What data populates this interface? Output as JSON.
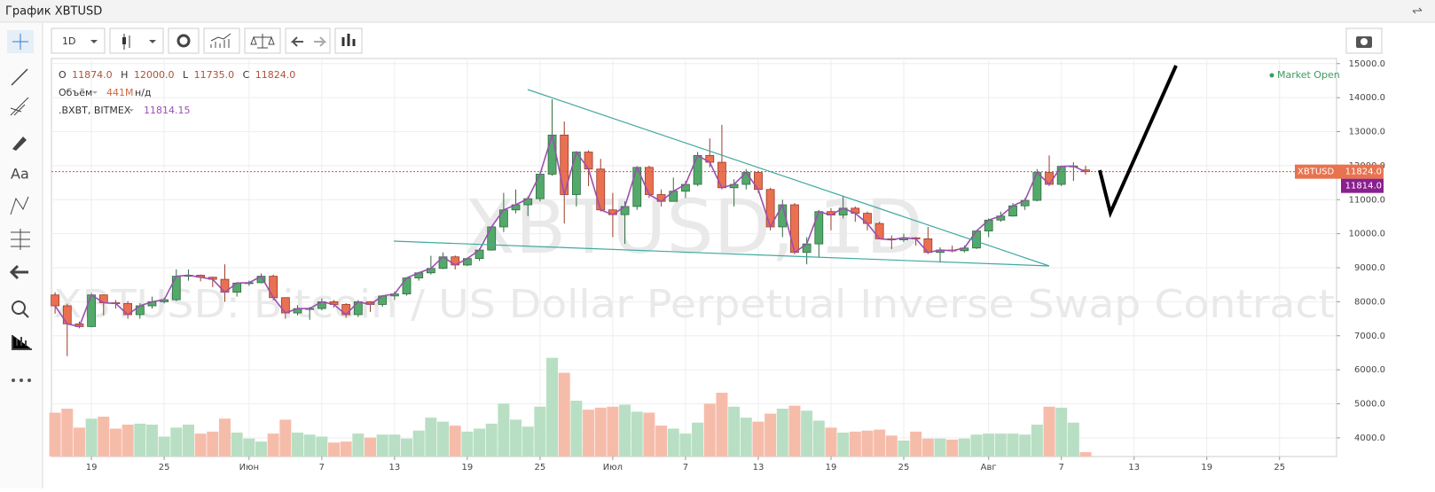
{
  "window_title": "График XBTUSD",
  "toolbar": {
    "interval": "1D",
    "text_tool": "Aa"
  },
  "chart_data": {
    "type": "candlestick",
    "header_labels": [
      "O",
      "H",
      "L",
      "C"
    ],
    "header_values": [
      "11874.0",
      "12000.0",
      "11735.0",
      "11824.0"
    ],
    "volume_name": "Объём",
    "volume_value": "441M",
    "volume_extra": "н/д",
    "index_name": ".BXBT, BITMEX",
    "index_value": "11814.15",
    "watermark": "XBTUSD, 1D",
    "watermark_subtitle": "XBTUSD: Bitcoin / US Dollar Perpetual Inverse Swap Contract",
    "market_status": "Market Open",
    "symbol_tag": "XBTUSD",
    "last_price": {
      "value": 11824,
      "label": "11824.0"
    },
    "index_price": {
      "value": 11814,
      "label": "11814.0"
    },
    "up_color": "#53a96a",
    "down_color": "#ea7052",
    "grid": true,
    "xlim": [
      -0.3,
      105.7
    ],
    "ylim": [
      3450,
      15150
    ],
    "xticks": [
      {
        "value": 3,
        "label": "19"
      },
      {
        "value": 9,
        "label": "25"
      },
      {
        "value": 16,
        "label": "Июн"
      },
      {
        "value": 22,
        "label": "7"
      },
      {
        "value": 28,
        "label": "13"
      },
      {
        "value": 34,
        "label": "19"
      },
      {
        "value": 40,
        "label": "25"
      },
      {
        "value": 46,
        "label": "Июл"
      },
      {
        "value": 52,
        "label": "7"
      },
      {
        "value": 58,
        "label": "13"
      },
      {
        "value": 64,
        "label": "19"
      },
      {
        "value": 70,
        "label": "25"
      },
      {
        "value": 77,
        "label": "Авг"
      },
      {
        "value": 83,
        "label": "7"
      },
      {
        "value": 89,
        "label": "13"
      },
      {
        "value": 95,
        "label": "19"
      },
      {
        "value": 101,
        "label": "25"
      }
    ],
    "yticks": [
      {
        "value": 15000,
        "label": "15000.0"
      },
      {
        "value": 14000,
        "label": "14000.0"
      },
      {
        "value": 13000,
        "label": "13000.0"
      },
      {
        "value": 12000,
        "label": "12000.0"
      },
      {
        "value": 11000,
        "label": "11000.0"
      },
      {
        "value": 10000,
        "label": "10000.0"
      },
      {
        "value": 9000,
        "label": "9000.0"
      },
      {
        "value": 8000,
        "label": "8000.0"
      },
      {
        "value": 7000,
        "label": "7000.0"
      },
      {
        "value": 6000,
        "label": "6000.0"
      },
      {
        "value": 5000,
        "label": "5000.0"
      },
      {
        "value": 4000,
        "label": "4000.0"
      }
    ],
    "x": [
      0,
      1,
      2,
      3,
      4,
      5,
      6,
      7,
      8,
      9,
      10,
      11,
      12,
      13,
      14,
      15,
      16,
      17,
      18,
      19,
      20,
      21,
      22,
      23,
      24,
      25,
      26,
      27,
      28,
      29,
      30,
      31,
      32,
      33,
      34,
      35,
      36,
      37,
      38,
      39,
      40,
      41,
      42,
      43,
      44,
      45,
      46,
      47,
      48,
      49,
      50,
      51,
      52,
      53,
      54,
      55,
      56,
      57,
      58,
      59,
      60,
      61,
      62,
      63,
      64,
      65,
      66,
      67,
      68,
      69,
      70,
      71,
      72,
      73,
      74,
      75,
      76,
      77,
      78,
      79,
      80,
      81,
      82,
      83,
      84,
      85
    ],
    "open": [
      8200,
      7880,
      7350,
      7270,
      8200,
      7970,
      7950,
      7620,
      7880,
      8000,
      8060,
      8750,
      8780,
      8720,
      8660,
      8280,
      8550,
      8560,
      8750,
      8120,
      7670,
      7800,
      7800,
      8000,
      7920,
      7620,
      8000,
      7920,
      8170,
      8230,
      8700,
      8850,
      8980,
      9320,
      9080,
      9270,
      9520,
      10200,
      10700,
      10850,
      11030,
      11750,
      12900,
      11150,
      12400,
      11900,
      10700,
      10560,
      10800,
      11950,
      11150,
      10950,
      11250,
      11450,
      12300,
      12100,
      11350,
      11450,
      11800,
      11300,
      10200,
      10850,
      9450,
      9700,
      10650,
      10550,
      10750,
      10600,
      10300,
      9850,
      9820,
      9880,
      9850,
      9450,
      9520,
      9500,
      9580,
      10080,
      10400,
      10520,
      10820,
      10980,
      11800,
      11450,
      11980,
      11874
    ],
    "high": [
      8280,
      7940,
      7420,
      8260,
      8210,
      8050,
      8020,
      7960,
      8150,
      8120,
      8950,
      8950,
      8800,
      8740,
      9100,
      8580,
      8620,
      8830,
      8800,
      8130,
      7900,
      7850,
      8100,
      8050,
      7960,
      8050,
      8020,
      8200,
      8300,
      8720,
      8880,
      9350,
      9450,
      9360,
      9300,
      9570,
      10200,
      11200,
      11300,
      11100,
      11800,
      13950,
      13300,
      12400,
      12450,
      12200,
      11200,
      10950,
      11950,
      12000,
      11300,
      11650,
      11550,
      12400,
      12800,
      13200,
      11600,
      11900,
      11850,
      11350,
      11000,
      10900,
      9900,
      10700,
      10750,
      11100,
      10800,
      10650,
      10350,
      9950,
      10000,
      9900,
      10200,
      9600,
      9650,
      9650,
      10100,
      10450,
      10650,
      10900,
      11050,
      11900,
      12300,
      12000,
      12100,
      12000
    ],
    "low": [
      7650,
      6400,
      7220,
      7250,
      7600,
      7800,
      7500,
      7500,
      7800,
      7950,
      8020,
      8620,
      8600,
      8430,
      8000,
      8150,
      8470,
      8540,
      8050,
      7500,
      7600,
      7470,
      7750,
      7830,
      7530,
      7550,
      7700,
      7850,
      8050,
      8180,
      8620,
      8800,
      8960,
      8950,
      9050,
      9200,
      9500,
      10050,
      10600,
      10520,
      10950,
      11700,
      10300,
      10800,
      11400,
      10650,
      9900,
      9700,
      10700,
      11050,
      10800,
      10950,
      11050,
      11400,
      11950,
      11300,
      10800,
      11300,
      11200,
      10100,
      9900,
      9400,
      9100,
      9300,
      10100,
      10450,
      10350,
      10100,
      9850,
      9550,
      9750,
      9650,
      9400,
      9150,
      9450,
      9450,
      9550,
      9900,
      10350,
      10500,
      10700,
      10950,
      11400,
      11400,
      11550,
      11735
    ],
    "close": [
      7880,
      7350,
      7270,
      8200,
      7970,
      7950,
      7620,
      7880,
      8000,
      8060,
      8750,
      8780,
      8720,
      8660,
      8280,
      8550,
      8560,
      8750,
      8120,
      7670,
      7800,
      7800,
      8000,
      7920,
      7620,
      8000,
      7920,
      8170,
      8230,
      8700,
      8850,
      8980,
      9320,
      9080,
      9270,
      9520,
      10200,
      10700,
      10850,
      11030,
      11750,
      12900,
      11150,
      12400,
      11900,
      10700,
      10560,
      10800,
      11950,
      11150,
      10950,
      11250,
      11450,
      12300,
      12100,
      11350,
      11450,
      11800,
      11300,
      10200,
      10850,
      9450,
      9700,
      10650,
      10550,
      10750,
      10600,
      10300,
      9850,
      9820,
      9880,
      9850,
      9450,
      9520,
      9500,
      9580,
      10080,
      10400,
      10520,
      10820,
      10980,
      11800,
      11450,
      11980,
      11990,
      11824
    ],
    "index_series": {
      "color": "#9c4fb0",
      "values": [
        7880,
        7350,
        7270,
        8200,
        7970,
        7950,
        7620,
        7880,
        8000,
        8060,
        8750,
        8780,
        8720,
        8660,
        8280,
        8550,
        8560,
        8750,
        8120,
        7670,
        7800,
        7800,
        8000,
        7920,
        7620,
        8000,
        7920,
        8170,
        8230,
        8700,
        8850,
        8980,
        9320,
        9080,
        9270,
        9520,
        10200,
        10700,
        10850,
        11030,
        11750,
        12900,
        11150,
        12400,
        11900,
        10700,
        10560,
        10800,
        11950,
        11150,
        10950,
        11250,
        11450,
        12300,
        12100,
        11350,
        11450,
        11800,
        11300,
        10200,
        10850,
        9450,
        9700,
        10650,
        10550,
        10750,
        10600,
        10300,
        9850,
        9820,
        9880,
        9850,
        9450,
        9520,
        9500,
        9580,
        10080,
        10400,
        10520,
        10820,
        10980,
        11800,
        11450,
        11980,
        11990,
        11814.15
      ]
    },
    "volume": {
      "ylim": [
        0,
        12000
      ],
      "up_color": "#b8dfc3",
      "down_color": "#f6bcaa",
      "values": [
        4400,
        4800,
        2900,
        3800,
        4000,
        2800,
        3200,
        3300,
        3200,
        2000,
        2900,
        3200,
        2300,
        2500,
        3800,
        2400,
        1800,
        1500,
        2300,
        3700,
        2400,
        2200,
        2000,
        1400,
        1500,
        2300,
        1900,
        2200,
        2200,
        1800,
        2600,
        3900,
        3500,
        3100,
        2500,
        2800,
        3300,
        5300,
        3700,
        3000,
        5000,
        9900,
        8400,
        5600,
        4700,
        4900,
        5000,
        5200,
        4500,
        4400,
        3100,
        2800,
        2300,
        3400,
        5300,
        6400,
        5000,
        3900,
        3500,
        4300,
        4800,
        5100,
        4600,
        3600,
        2900,
        2400,
        2500,
        2600,
        2700,
        2100,
        1600,
        2500,
        1800,
        1800,
        1700,
        1800,
        2200,
        2300,
        2300,
        2300,
        2200,
        3200,
        5000,
        4900,
        3400,
        441
      ]
    }
  }
}
